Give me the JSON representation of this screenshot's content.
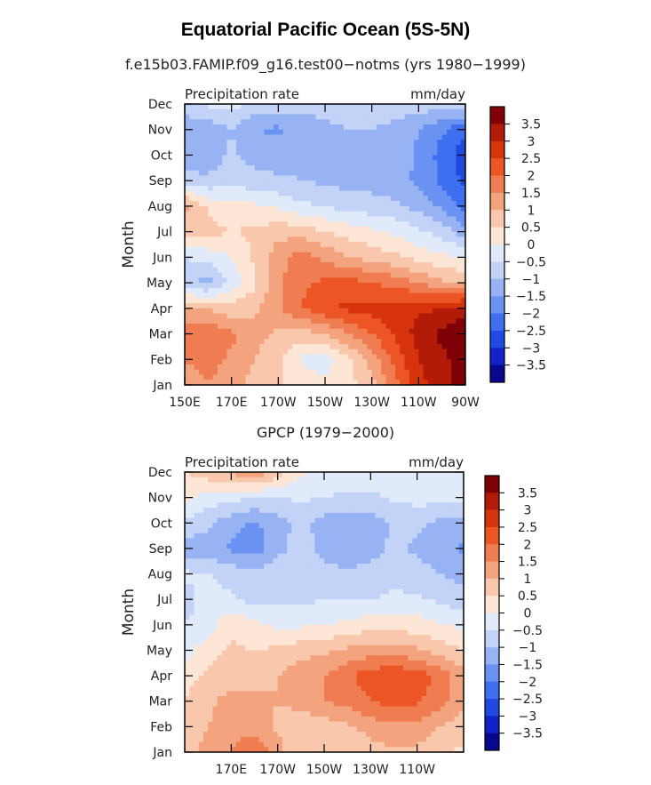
{
  "title": "Equatorial Pacific Ocean (5S-5N)",
  "colors": [
    "#08088f",
    "#1022c8",
    "#1f49e0",
    "#3d6ff0",
    "#6a92f2",
    "#98b3f4",
    "#c2d3f7",
    "#e1eafa",
    "#fde6d6",
    "#f9c8ac",
    "#f4a37f",
    "#f07c52",
    "#ec5524",
    "#d7330c",
    "#b11b07",
    "#800008"
  ],
  "chart_data": [
    {
      "type": "heatmap",
      "subtitle": "f.e15b03.FAMIP.f09_g16.test00−notms (yrs 1980−1999)",
      "left_label": "Precipitation rate",
      "right_label": "mm/day",
      "ylabel": "Month",
      "y_ticks": [
        "Jan",
        "Feb",
        "Mar",
        "Apr",
        "May",
        "Jun",
        "Jul",
        "Aug",
        "Sep",
        "Oct",
        "Nov",
        "Dec"
      ],
      "x_ticks": [
        "150E",
        "170E",
        "170W",
        "150W",
        "130W",
        "110W",
        "90W"
      ],
      "x_lon": [
        150,
        170,
        190,
        210,
        230,
        250,
        270
      ],
      "xlim": [
        150,
        270
      ],
      "colorbar_labels": [
        "3.5",
        "3",
        "2.5",
        "2",
        "1.5",
        "1",
        "0.5",
        "0",
        "−0.5",
        "−1",
        "−1.5",
        "−2",
        "−2.5",
        "−3",
        "−3.5"
      ],
      "levels": [
        -3.5,
        -3,
        -2.5,
        -2,
        -1.5,
        -1,
        -0.5,
        0,
        0.5,
        1,
        1.5,
        2,
        2.5,
        3,
        3.5
      ],
      "lons": [
        150,
        160,
        170,
        180,
        190,
        200,
        210,
        220,
        230,
        240,
        250,
        260,
        270
      ],
      "values": [
        [
          1.3,
          1.5,
          1.2,
          0.8,
          0.6,
          0.3,
          0.1,
          0.3,
          0.8,
          1.8,
          2.8,
          3.4,
          3.6
        ],
        [
          1.5,
          1.7,
          1.4,
          1.0,
          0.6,
          -0.1,
          -0.2,
          0.4,
          1.2,
          2.2,
          3.0,
          3.4,
          3.7
        ],
        [
          1.7,
          1.9,
          1.6,
          1.2,
          0.9,
          0.8,
          1.0,
          1.5,
          2.0,
          2.6,
          3.2,
          3.6,
          4.0
        ],
        [
          1.1,
          1.0,
          0.7,
          0.9,
          1.4,
          2.0,
          2.4,
          2.6,
          2.7,
          2.8,
          2.9,
          3.0,
          3.2
        ],
        [
          -0.9,
          -1.2,
          -0.3,
          0.4,
          1.4,
          1.9,
          2.1,
          2.2,
          2.0,
          1.8,
          1.5,
          1.1,
          0.9
        ],
        [
          -0.5,
          -0.3,
          0.0,
          0.6,
          1.3,
          1.7,
          1.4,
          1.0,
          0.8,
          0.6,
          0.3,
          0.1,
          0.0
        ],
        [
          0.6,
          0.7,
          0.5,
          0.6,
          0.8,
          0.8,
          0.5,
          0.3,
          0.1,
          -0.1,
          -0.4,
          -0.7,
          -1.3
        ],
        [
          1.2,
          0.4,
          0.1,
          0.1,
          -0.1,
          -0.4,
          -0.5,
          -0.7,
          -0.8,
          -0.9,
          -1.2,
          -1.6,
          -2.2
        ],
        [
          -0.9,
          -0.9,
          -0.7,
          -0.8,
          -0.9,
          -1.0,
          -1.1,
          -1.2,
          -1.2,
          -1.3,
          -1.6,
          -2.1,
          -2.6
        ],
        [
          -1.1,
          -1.3,
          -0.9,
          -1.2,
          -1.3,
          -1.2,
          -1.2,
          -1.1,
          -1.1,
          -1.2,
          -1.6,
          -2.2,
          -2.8
        ],
        [
          -1.5,
          -1.3,
          -1.0,
          -1.5,
          -1.6,
          -1.3,
          -1.2,
          -1.0,
          -1.0,
          -1.2,
          -1.5,
          -1.9,
          -2.4
        ],
        [
          -0.6,
          -0.4,
          -0.3,
          -0.6,
          -0.7,
          -0.8,
          -0.7,
          -0.6,
          -0.6,
          -0.6,
          -0.7,
          -0.8,
          -0.6
        ]
      ]
    },
    {
      "type": "heatmap",
      "subtitle": "GPCP (1979−2000)",
      "left_label": "Precipitation rate",
      "right_label": "mm/day",
      "ylabel": "Month",
      "y_ticks": [
        "Jan",
        "Feb",
        "Mar",
        "Apr",
        "May",
        "Jun",
        "Jul",
        "Aug",
        "Sep",
        "Oct",
        "Nov",
        "Dec"
      ],
      "x_ticks": [
        "170E",
        "170W",
        "150W",
        "130W",
        "110W"
      ],
      "x_lon": [
        170,
        190,
        210,
        230,
        250
      ],
      "xlim": [
        150,
        270
      ],
      "colorbar_labels": [
        "3.5",
        "3",
        "2.5",
        "2",
        "1.5",
        "1",
        "0.5",
        "0",
        "−0.5",
        "−1",
        "−1.5",
        "−2",
        "−2.5",
        "−3",
        "−3.5"
      ],
      "levels": [
        -3.5,
        -3,
        -2.5,
        -2,
        -1.5,
        -1,
        -0.5,
        0,
        0.5,
        1,
        1.5,
        2,
        2.5,
        3,
        3.5
      ],
      "lons": [
        150,
        160,
        170,
        180,
        190,
        200,
        210,
        220,
        230,
        240,
        250,
        260,
        270
      ],
      "values": [
        [
          0.7,
          1.2,
          1.5,
          2.0,
          1.2,
          0.6,
          0.6,
          0.6,
          0.8,
          0.9,
          0.9,
          0.6,
          0.4
        ],
        [
          0.7,
          1.0,
          1.3,
          1.3,
          0.9,
          0.6,
          0.7,
          0.9,
          1.2,
          1.4,
          1.3,
          1.0,
          0.7
        ],
        [
          0.5,
          0.9,
          1.2,
          1.1,
          1.0,
          1.2,
          1.5,
          1.7,
          2.0,
          2.2,
          2.1,
          1.7,
          1.2
        ],
        [
          0.3,
          0.6,
          0.8,
          0.8,
          1.0,
          1.3,
          1.5,
          1.9,
          2.3,
          2.4,
          2.3,
          1.8,
          1.2
        ],
        [
          -0.2,
          0.3,
          0.6,
          0.5,
          0.6,
          0.8,
          0.9,
          1.1,
          1.2,
          1.2,
          1.1,
          0.8,
          0.5
        ],
        [
          -0.5,
          -0.3,
          0.4,
          0.1,
          -0.1,
          -0.1,
          0.0,
          0.1,
          0.3,
          0.3,
          0.2,
          0.0,
          -0.1
        ],
        [
          -0.7,
          -0.3,
          -0.4,
          -0.7,
          -0.6,
          -0.6,
          -0.5,
          -0.5,
          -0.5,
          -0.4,
          -0.4,
          -0.6,
          -0.8
        ],
        [
          -0.4,
          -0.5,
          -0.7,
          -0.8,
          -0.6,
          -0.7,
          -0.8,
          -0.9,
          -0.8,
          -0.7,
          -0.8,
          -1.0,
          -1.2
        ],
        [
          -1.3,
          -1.3,
          -1.6,
          -1.8,
          -1.2,
          -0.7,
          -1.2,
          -1.4,
          -1.2,
          -0.9,
          -1.1,
          -1.3,
          -1.6
        ],
        [
          -0.6,
          -0.9,
          -1.3,
          -1.6,
          -1.2,
          -0.9,
          -1.2,
          -1.3,
          -1.3,
          -0.9,
          -0.9,
          -1.1,
          -1.2
        ],
        [
          0.1,
          -0.2,
          -0.3,
          -0.5,
          -0.5,
          -0.4,
          -0.5,
          -0.6,
          -0.6,
          -0.4,
          -0.3,
          -0.3,
          -0.3
        ],
        [
          0.5,
          0.8,
          1.1,
          1.4,
          0.8,
          0.1,
          -0.1,
          -0.2,
          -0.2,
          -0.1,
          -0.1,
          0.0,
          0.0
        ]
      ]
    }
  ]
}
